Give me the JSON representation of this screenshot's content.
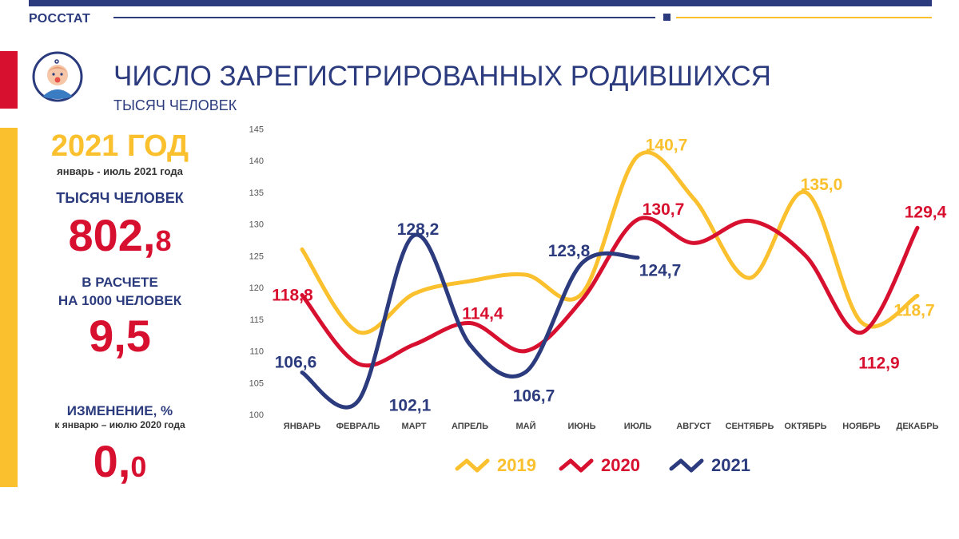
{
  "header": {
    "brand": "РОССТАТ"
  },
  "title": "ЧИСЛО ЗАРЕГИСТРИРОВАННЫХ РОДИВШИХСЯ",
  "subtitle": "ТЫСЯЧ ЧЕЛОВЕК",
  "summary": {
    "year_title": "2021 ГОД",
    "period": "январь - июль 2021 года",
    "total_label": "ТЫСЯЧ ЧЕЛОВЕК",
    "total_int": "802,",
    "total_dec": "8",
    "rate_label_1": "В РАСЧЕТЕ",
    "rate_label_2": "НА 1000 ЧЕЛОВЕК",
    "rate_value": "9,5",
    "change_label": "ИЗМЕНЕНИЕ, %",
    "change_sublabel": "к январю – июлю 2020 года",
    "change_int": "0,",
    "change_dec": "0"
  },
  "colors": {
    "c2019": "#fbc02d",
    "c2020": "#d8102f",
    "c2021": "#2b3b7d"
  },
  "chart_data": {
    "type": "line",
    "title": "ЧИСЛО ЗАРЕГИСТРИРОВАННЫХ РОДИВШИХСЯ",
    "ylabel": "тысяч человек",
    "categories": [
      "ЯНВАРЬ",
      "ФЕВРАЛЬ",
      "МАРТ",
      "АПРЕЛЬ",
      "МАЙ",
      "ИЮНЬ",
      "ИЮЛЬ",
      "АВГУСТ",
      "СЕНТЯБРЬ",
      "ОКТЯБРЬ",
      "НОЯБРЬ",
      "ДЕКАБРЬ"
    ],
    "ylim": [
      100,
      145
    ],
    "yticks": [
      100,
      105,
      110,
      115,
      120,
      125,
      130,
      135,
      140,
      145
    ],
    "grid": false,
    "legend_position": "bottom",
    "series": [
      {
        "name": "2019",
        "values": [
          126,
          113,
          119,
          121,
          122,
          119,
          140.7,
          134,
          121.5,
          135.0,
          114.5,
          118.7
        ]
      },
      {
        "name": "2020",
        "values": [
          118.8,
          108,
          111,
          114.4,
          110,
          118,
          130.7,
          127,
          130.5,
          125,
          112.9,
          129.4
        ]
      },
      {
        "name": "2021",
        "values": [
          106.6,
          102.1,
          128.2,
          111,
          106.7,
          123.8,
          124.7,
          null,
          null,
          null,
          null,
          null
        ]
      }
    ],
    "annotations": [
      {
        "series": "2019",
        "index": 6,
        "text": "140,7"
      },
      {
        "series": "2019",
        "index": 9,
        "text": "135,0"
      },
      {
        "series": "2019",
        "index": 11,
        "text": "118,7"
      },
      {
        "series": "2020",
        "index": 0,
        "text": "118,8"
      },
      {
        "series": "2020",
        "index": 3,
        "text": "114,4"
      },
      {
        "series": "2020",
        "index": 6,
        "text": "130,7"
      },
      {
        "series": "2020",
        "index": 10,
        "text": "112,9"
      },
      {
        "series": "2020",
        "index": 11,
        "text": "129,4"
      },
      {
        "series": "2021",
        "index": 0,
        "text": "106,6"
      },
      {
        "series": "2021",
        "index": 1,
        "text": "102,1"
      },
      {
        "series": "2021",
        "index": 2,
        "text": "128,2"
      },
      {
        "series": "2021",
        "index": 4,
        "text": "106,7"
      },
      {
        "series": "2021",
        "index": 5,
        "text": "123,8"
      },
      {
        "series": "2021",
        "index": 6,
        "text": "124,7"
      }
    ]
  }
}
